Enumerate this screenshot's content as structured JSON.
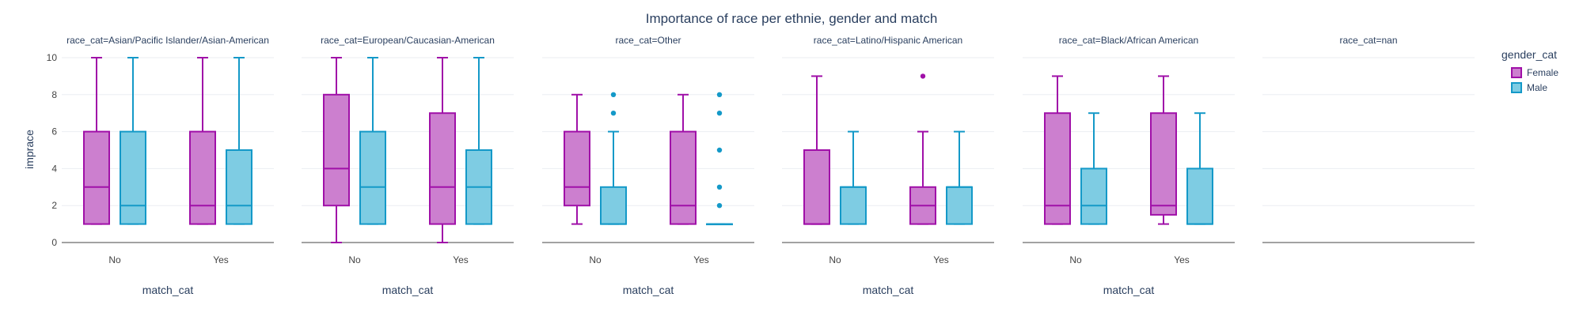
{
  "chart_data": {
    "type": "box",
    "title": "Importance of race per ethnie, gender and match",
    "ylabel": "imprace",
    "xlabel": "match_cat",
    "ylim": [
      0,
      10
    ],
    "yticks": [
      0,
      2,
      4,
      6,
      8,
      10
    ],
    "categories": [
      "No",
      "Yes"
    ],
    "grid": true,
    "legend": {
      "title": "gender_cat",
      "position": "top-right",
      "items": [
        {
          "name": "Female",
          "fill": "#cc7fcf",
          "stroke": "#a010a8"
        },
        {
          "name": "Male",
          "fill": "#7ecce3",
          "stroke": "#1499c8"
        }
      ]
    },
    "facets": [
      {
        "label": "race_cat=Asian/Pacific Islander/Asian-American",
        "xlabel": "match_cat",
        "groups": [
          {
            "category": "No",
            "gender": "Female",
            "min": 1,
            "q1": 1,
            "median": 3,
            "q3": 6,
            "max": 10,
            "outliers": []
          },
          {
            "category": "No",
            "gender": "Male",
            "min": 1,
            "q1": 1,
            "median": 2,
            "q3": 6,
            "max": 10,
            "outliers": []
          },
          {
            "category": "Yes",
            "gender": "Female",
            "min": 1,
            "q1": 1,
            "median": 2,
            "q3": 6,
            "max": 10,
            "outliers": []
          },
          {
            "category": "Yes",
            "gender": "Male",
            "min": 1,
            "q1": 1,
            "median": 2,
            "q3": 5,
            "max": 10,
            "outliers": []
          }
        ]
      },
      {
        "label": "race_cat=European/Caucasian-American",
        "xlabel": "match_cat",
        "groups": [
          {
            "category": "No",
            "gender": "Female",
            "min": 0,
            "q1": 2,
            "median": 4,
            "q3": 8,
            "max": 10,
            "outliers": []
          },
          {
            "category": "No",
            "gender": "Male",
            "min": 1,
            "q1": 1,
            "median": 3,
            "q3": 6,
            "max": 10,
            "outliers": []
          },
          {
            "category": "Yes",
            "gender": "Female",
            "min": 0,
            "q1": 1,
            "median": 3,
            "q3": 7,
            "max": 10,
            "outliers": []
          },
          {
            "category": "Yes",
            "gender": "Male",
            "min": 1,
            "q1": 1,
            "median": 3,
            "q3": 5,
            "max": 10,
            "outliers": []
          }
        ]
      },
      {
        "label": "race_cat=Other",
        "xlabel": "match_cat",
        "groups": [
          {
            "category": "No",
            "gender": "Female",
            "min": 1,
            "q1": 2,
            "median": 3,
            "q3": 6,
            "max": 8,
            "outliers": []
          },
          {
            "category": "No",
            "gender": "Male",
            "min": 1,
            "q1": 1,
            "median": 1,
            "q3": 3,
            "max": 6,
            "outliers": [
              7,
              8
            ]
          },
          {
            "category": "Yes",
            "gender": "Female",
            "min": 1,
            "q1": 1,
            "median": 2,
            "q3": 6,
            "max": 8,
            "outliers": []
          },
          {
            "category": "Yes",
            "gender": "Male",
            "min": 1,
            "q1": 1,
            "median": 1,
            "q3": 1,
            "max": 1,
            "outliers": [
              2,
              3,
              5,
              7,
              8
            ]
          }
        ]
      },
      {
        "label": "race_cat=Latino/Hispanic American",
        "xlabel": "match_cat",
        "groups": [
          {
            "category": "No",
            "gender": "Female",
            "min": 1,
            "q1": 1,
            "median": 1,
            "q3": 5,
            "max": 9,
            "outliers": []
          },
          {
            "category": "No",
            "gender": "Male",
            "min": 1,
            "q1": 1,
            "median": 3,
            "q3": 3,
            "max": 6,
            "outliers": []
          },
          {
            "category": "Yes",
            "gender": "Female",
            "min": 1,
            "q1": 1,
            "median": 2,
            "q3": 3,
            "max": 6,
            "outliers": [
              9
            ]
          },
          {
            "category": "Yes",
            "gender": "Male",
            "min": 1,
            "q1": 1,
            "median": 3,
            "q3": 3,
            "max": 6,
            "outliers": []
          }
        ]
      },
      {
        "label": "race_cat=Black/African American",
        "xlabel": "match_cat",
        "groups": [
          {
            "category": "No",
            "gender": "Female",
            "min": 1,
            "q1": 1,
            "median": 2,
            "q3": 7,
            "max": 9,
            "outliers": []
          },
          {
            "category": "No",
            "gender": "Male",
            "min": 1,
            "q1": 1,
            "median": 2,
            "q3": 4,
            "max": 7,
            "outliers": []
          },
          {
            "category": "Yes",
            "gender": "Female",
            "min": 1,
            "q1": 1.5,
            "median": 2,
            "q3": 7,
            "max": 9,
            "outliers": []
          },
          {
            "category": "Yes",
            "gender": "Male",
            "min": 1,
            "q1": 1,
            "median": 1,
            "q3": 4,
            "max": 7,
            "outliers": []
          }
        ]
      },
      {
        "label": "race_cat=nan",
        "xlabel": "",
        "groups": []
      }
    ]
  }
}
